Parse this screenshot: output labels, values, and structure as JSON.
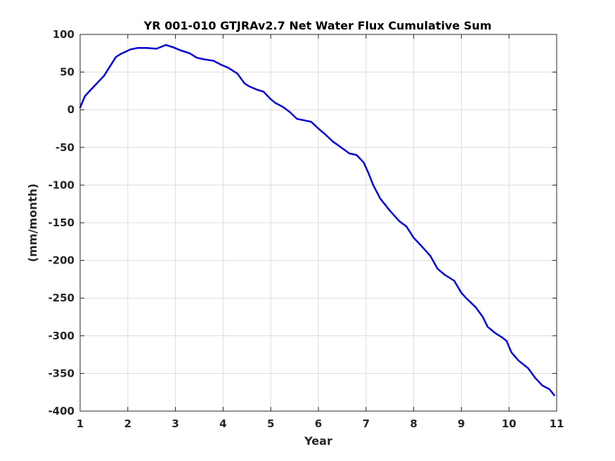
{
  "chart_data": {
    "type": "line",
    "title": "YR 001-010 GTJRAv2.7 Net Water Flux Cumulative Sum",
    "xlabel": "Year",
    "ylabel": "(mm/month)",
    "xlim": [
      1,
      11
    ],
    "ylim": [
      -400,
      100
    ],
    "xticks": [
      1,
      2,
      3,
      4,
      5,
      6,
      7,
      8,
      9,
      10,
      11
    ],
    "yticks": [
      100,
      50,
      0,
      -50,
      -100,
      -150,
      -200,
      -250,
      -300,
      -350,
      -400
    ],
    "grid": true,
    "series": [
      {
        "color": "#0000d6",
        "x": [
          1.0,
          1.1,
          1.2,
          1.35,
          1.5,
          1.65,
          1.75,
          1.85,
          1.95,
          2.05,
          2.2,
          2.4,
          2.6,
          2.8,
          2.95,
          3.1,
          3.3,
          3.45,
          3.6,
          3.8,
          3.95,
          4.1,
          4.3,
          4.45,
          4.55,
          4.7,
          4.85,
          5.0,
          5.1,
          5.25,
          5.4,
          5.55,
          5.7,
          5.85,
          6.0,
          6.15,
          6.3,
          6.5,
          6.65,
          6.8,
          6.95,
          7.05,
          7.15,
          7.3,
          7.5,
          7.7,
          7.85,
          8.0,
          8.15,
          8.35,
          8.5,
          8.65,
          8.85,
          9.0,
          9.1,
          9.3,
          9.45,
          9.55,
          9.7,
          9.85,
          9.95,
          10.05,
          10.2,
          10.4,
          10.55,
          10.7,
          10.85,
          10.95
        ],
        "y": [
          3,
          18,
          25,
          35,
          45,
          60,
          70,
          74,
          77,
          80,
          82,
          82,
          81,
          86,
          83,
          79,
          75,
          69,
          67,
          65,
          60,
          56,
          48,
          35,
          31,
          27,
          24,
          14,
          9,
          4,
          -3,
          -12,
          -14,
          -16,
          -25,
          -33,
          -42,
          -51,
          -58,
          -60,
          -70,
          -84,
          -100,
          -118,
          -134,
          -148,
          -155,
          -170,
          -180,
          -194,
          -211,
          -219,
          -227,
          -243,
          -250,
          -262,
          -275,
          -288,
          -296,
          -302,
          -307,
          -322,
          -333,
          -343,
          -356,
          -366,
          -371,
          -379
        ]
      }
    ]
  }
}
